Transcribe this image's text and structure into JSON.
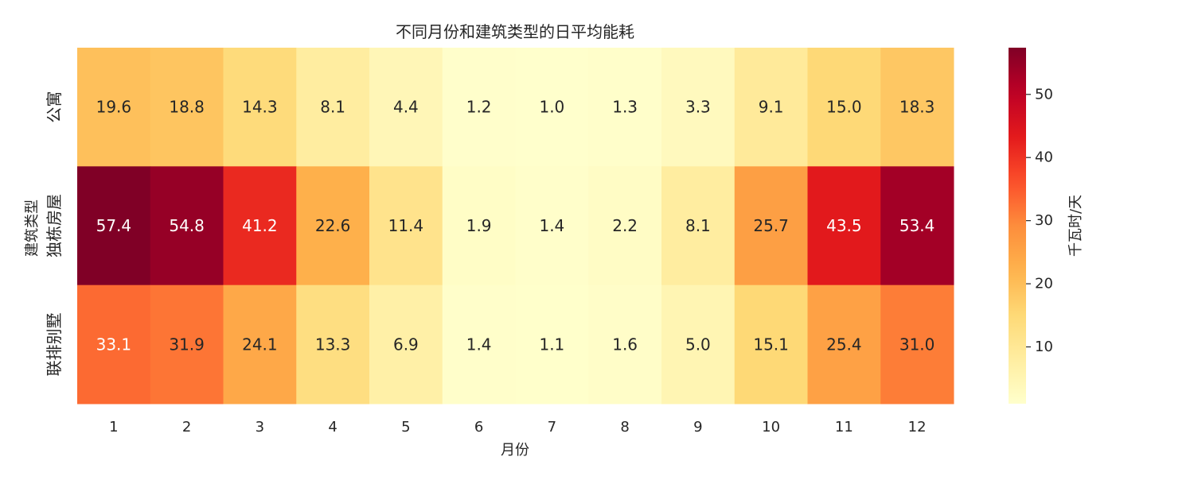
{
  "chart_data": {
    "type": "heatmap",
    "title": "不同月份和建筑类型的日平均能耗",
    "xlabel": "月份",
    "ylabel": "建筑类型",
    "x_categories": [
      "1",
      "2",
      "3",
      "4",
      "5",
      "6",
      "7",
      "8",
      "9",
      "10",
      "11",
      "12"
    ],
    "y_categories": [
      "公寓",
      "独栋房屋",
      "联排别墅"
    ],
    "values": [
      [
        19.6,
        18.8,
        14.3,
        8.1,
        4.4,
        1.2,
        1.0,
        1.3,
        3.3,
        9.1,
        15.0,
        18.3
      ],
      [
        57.4,
        54.8,
        41.2,
        22.6,
        11.4,
        1.9,
        1.4,
        2.2,
        8.1,
        25.7,
        43.5,
        53.4
      ],
      [
        33.1,
        31.9,
        24.1,
        13.3,
        6.9,
        1.4,
        1.1,
        1.6,
        5.0,
        15.1,
        25.4,
        31.0
      ]
    ],
    "colorbar": {
      "label": "千瓦时/天",
      "colormap": "YlOrRd",
      "range": [
        1.0,
        57.4
      ],
      "ticks": [
        10,
        20,
        30,
        40,
        50
      ]
    },
    "legend": "none"
  }
}
